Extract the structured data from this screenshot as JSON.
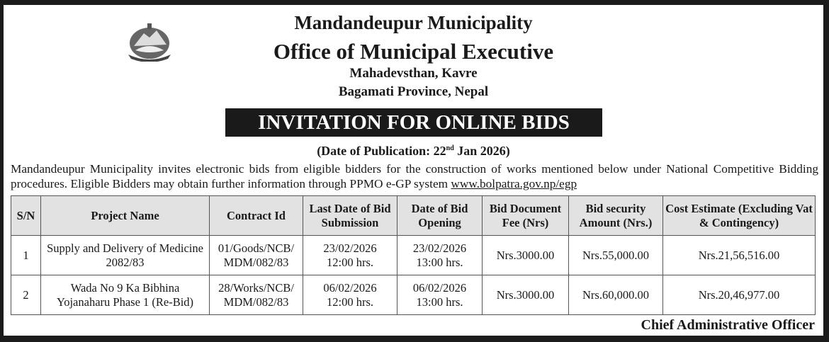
{
  "header": {
    "org": "Mandandeupur Municipality",
    "office": "Office of Municipal Executive",
    "address1": "Mahadevsthan, Kavre",
    "address2": "Bagamati Province, Nepal",
    "emblem_icon": "nepal-emblem-icon"
  },
  "banner": "INVITATION FOR ONLINE BIDS",
  "publication": {
    "prefix": "(Date of Publication: 22",
    "sup": "nd",
    "suffix": " Jan 2026)"
  },
  "intro": {
    "text": "Mandandeupur Municipality invites electronic bids from eligible bidders for the construction of works mentioned below under National Competitive Bidding procedures. Eligible Bidders may obtain further information through PPMO e-GP system ",
    "link": "www.bolpatra.gov.np/egp"
  },
  "table": {
    "headers": [
      "S/N",
      "Project Name",
      "Contract Id",
      "Last Date of Bid Submission",
      "Date of Bid Opening",
      "Bid Document Fee (Nrs)",
      "Bid security Amount (Nrs.)",
      "Cost Estimate (Excluding Vat & Contingency)"
    ],
    "rows": [
      {
        "sn": "1",
        "project": "Supply and Delivery of Medicine 2082/83",
        "contract": "01/Goods/NCB/ MDM/082/83",
        "last_date": "23/02/2026",
        "last_time": "12:00 hrs.",
        "open_date": "23/02/2026",
        "open_time": "13:00 hrs.",
        "fee": "Nrs.3000.00",
        "security": "Nrs.55,000.00",
        "estimate": "Nrs.21,56,516.00"
      },
      {
        "sn": "2",
        "project": "Wada No 9 Ka Bibhina Yojanaharu Phase 1 (Re-Bid)",
        "contract": "28/Works/NCB/ MDM/082/83",
        "last_date": "06/02/2026",
        "last_time": "12:00 hrs.",
        "open_date": "06/02/2026",
        "open_time": "13:00 hrs.",
        "fee": "Nrs.3000.00",
        "security": "Nrs.60,000.00",
        "estimate": "Nrs.20,46,977.00"
      }
    ]
  },
  "signature": "Chief Administrative Officer"
}
